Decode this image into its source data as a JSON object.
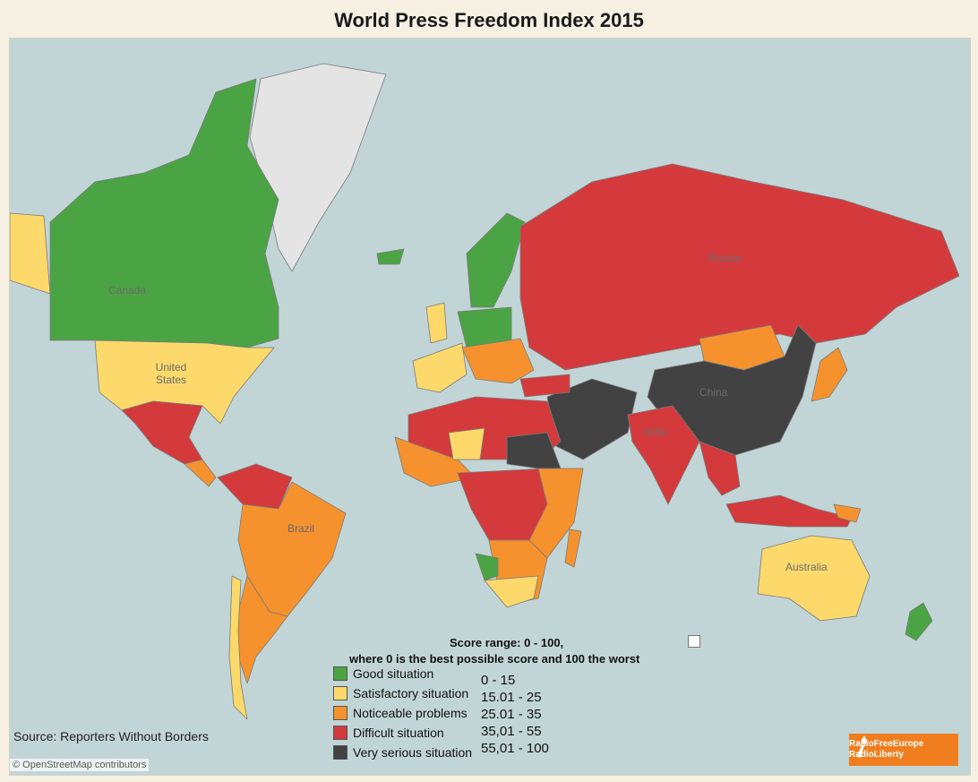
{
  "title": "World Press Freedom Index 2015",
  "colors": {
    "good": "#4aa444",
    "satisfactory": "#fcd96a",
    "noticeable": "#f5922e",
    "difficult": "#d43a3b",
    "very_serious": "#424242",
    "no_data": "#e4e4e4",
    "ocean": "#c2d5d6"
  },
  "labels": {
    "canada": "Canada",
    "united_states": "United States",
    "brazil": "Brazil",
    "russia": "Russia",
    "china": "China",
    "india": "India",
    "australia": "Australia"
  },
  "legend": {
    "heading": "Score range: 0 - 100,",
    "subheading": "where 0 is the best possible score and 100 the worst",
    "items": [
      {
        "label": "Good situation",
        "range": "0 - 15",
        "color": "#4aa444"
      },
      {
        "label": "Satisfactory situation",
        "range": "15.01 - 25",
        "color": "#fcd96a"
      },
      {
        "label": "Noticeable problems",
        "range": "25.01 - 35",
        "color": "#f5922e"
      },
      {
        "label": "Difficult situation",
        "range": "35,01 - 55",
        "color": "#d43a3b"
      },
      {
        "label": "Very serious situation",
        "range": "55,01 - 100",
        "color": "#424242"
      }
    ]
  },
  "source": "Source: Reporters Without Borders",
  "attribution": "© OpenStreetMap contributors",
  "logo": {
    "line1": "RadioFreeEurope",
    "line2": "RadioLiberty",
    "icon": "torch-icon"
  }
}
